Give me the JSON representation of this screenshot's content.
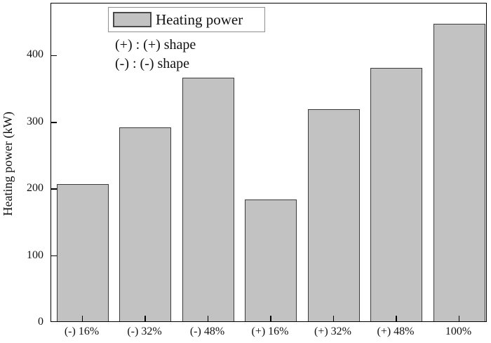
{
  "figure": {
    "ylabel": "Heating power (kW)",
    "legend_label": "Heating power",
    "annotation_line1": "(+) : (+) shape",
    "annotation_line2": "(-) : (-) shape"
  },
  "colors": {
    "bar_fill": "#c2c2c2",
    "bar_edge": "#3b3b3b",
    "axis": "#000000",
    "legend_border": "#8f8f8f",
    "text": "#111111"
  },
  "chart_data": {
    "type": "bar",
    "title": "",
    "xlabel": "",
    "ylabel": "Heating power (kW)",
    "categories": [
      "(-) 16%",
      "(-) 32%",
      "(-) 48%",
      "(+) 16%",
      "(+) 32%",
      "(+) 48%",
      "100%"
    ],
    "values": [
      205,
      290,
      365,
      182,
      318,
      380,
      445
    ],
    "series_name": "Heating power",
    "yticks": [
      0,
      100,
      200,
      300,
      400
    ],
    "ylim": [
      0,
      478
    ],
    "grid": false,
    "legend_position": "upper-left",
    "annotations": [
      "(+) : (+) shape",
      "(-) : (-) shape"
    ]
  }
}
